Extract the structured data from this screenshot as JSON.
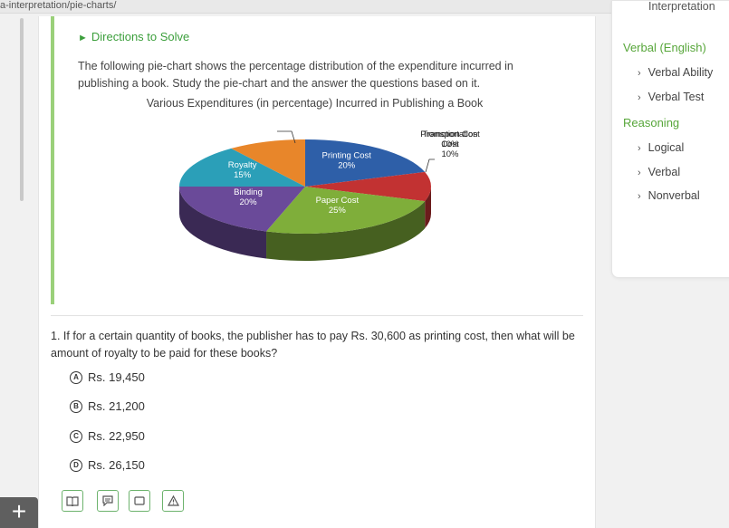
{
  "browser": {
    "url_fragment": "a-interpretation/pie-charts/"
  },
  "directions": {
    "title": "Directions to Solve",
    "text": "The following pie-chart shows the percentage distribution of the expenditure incurred in publishing a book. Study the pie-chart and the answer the questions based on it.",
    "chart_title": "Various Expenditures (in percentage) Incurred in Publishing a Book"
  },
  "chart_data": {
    "type": "pie",
    "title": "Various Expenditures (in percentage) Incurred in Publishing a Book",
    "slices": [
      {
        "label": "Printing Cost",
        "value": 20,
        "display": "20%",
        "color": "#2e5fa8"
      },
      {
        "label": "Transportation Cost",
        "value": 10,
        "display": "10%",
        "color": "#c23232"
      },
      {
        "label": "Paper Cost",
        "value": 25,
        "display": "25%",
        "color": "#7fae3a"
      },
      {
        "label": "Binding",
        "value": 20,
        "display": "20%",
        "color": "#6a4a99"
      },
      {
        "label": "Royalty",
        "value": 15,
        "display": "15%",
        "color": "#2b9fb8"
      },
      {
        "label": "Promotion Cost",
        "value": 10,
        "display": "10%",
        "color": "#e8862a"
      }
    ]
  },
  "question": {
    "number": "1.",
    "text": "If for a certain quantity of books, the publisher has to pay Rs. 30,600 as printing cost, then what will be amount of royalty to be paid for these books?",
    "options": [
      {
        "letter": "A",
        "text": "Rs. 19,450"
      },
      {
        "letter": "B",
        "text": "Rs. 21,200"
      },
      {
        "letter": "C",
        "text": "Rs. 22,950"
      },
      {
        "letter": "D",
        "text": "Rs. 26,150"
      }
    ]
  },
  "toolbar": {
    "icons": [
      "book-icon",
      "comment-icon",
      "square-icon",
      "warning-icon"
    ]
  },
  "sidebar": {
    "cut_label": "Interpretation",
    "sections": [
      {
        "heading": "Verbal (English)",
        "items": [
          "Verbal Ability",
          "Verbal Test"
        ]
      },
      {
        "heading": "Reasoning",
        "items": [
          "Logical",
          "Verbal",
          "Nonverbal"
        ]
      }
    ]
  },
  "fab": {
    "label": "+"
  }
}
